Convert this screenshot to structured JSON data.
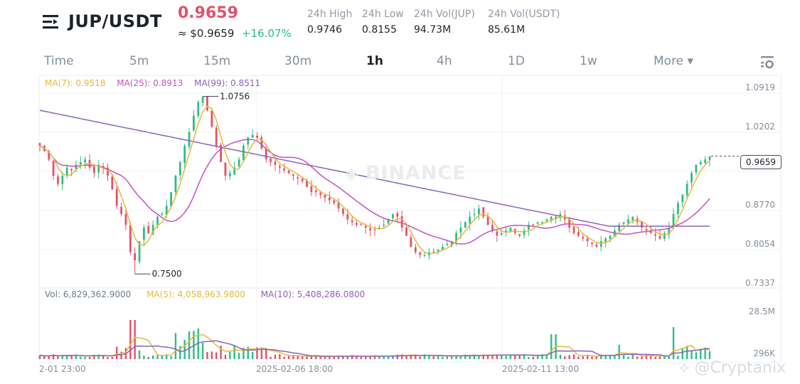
{
  "header": {
    "pair": "JUP/USDT",
    "last_price": "0.9659",
    "approx_usd": "≈ $0.9659",
    "change_pct": "+16.07%",
    "stats": [
      {
        "label": "24h High",
        "value": "0.9746"
      },
      {
        "label": "24h Low",
        "value": "0.8155"
      },
      {
        "label": "24h Vol(JUP)",
        "value": "94.73M"
      },
      {
        "label": "24h Vol(USDT)",
        "value": "85.61M"
      }
    ]
  },
  "tabs": [
    {
      "label": "Time"
    },
    {
      "label": "5m"
    },
    {
      "label": "15m"
    },
    {
      "label": "30m"
    },
    {
      "label": "1h",
      "active": true
    },
    {
      "label": "4h"
    },
    {
      "label": "1D"
    },
    {
      "label": "1w"
    },
    {
      "label": "More ▾"
    }
  ],
  "icons": {
    "menu": "menu-icon",
    "settings": "chart-settings-icon"
  },
  "colors": {
    "up": "#2ebd85",
    "down": "#e0536a",
    "ma7": "#e8b83a",
    "ma25": "#c552c0",
    "ma99": "#8a63b8",
    "vol_ma5": "#e8b83a",
    "vol_ma10": "#8a63b8",
    "grid": "#f0f1f2",
    "accent_price": "#e0536a"
  },
  "price_legend": {
    "ma7": "MA(7): 0.9518",
    "ma25": "MA(25): 0.8913",
    "ma99": "MA(99): 0.8511"
  },
  "volume_legend": {
    "vol": "Vol: 6,829,362.9000",
    "ma5": "MA(5): 4,058,963.9800",
    "ma10": "MA(10): 5,408,286.0800"
  },
  "watermarks": {
    "exchange": "BINANCE",
    "user": "@Cryptanix"
  },
  "chart_data": {
    "type": "candlestick",
    "title": "JUP/USDT 1h",
    "interval": "1h",
    "price_axis_ticks": [
      "1.0919",
      "1.0202",
      "0.8770",
      "0.8054",
      "0.7337"
    ],
    "volume_axis_ticks": [
      "28.5M",
      "296K"
    ],
    "x_tick_labels": [
      "2-01 23:00",
      "2025-02-06 18:00",
      "2025-02-11 13:00"
    ],
    "current_price_tag": "0.9659",
    "annotations": {
      "high": "1.0756",
      "low": "0.7500"
    },
    "ylim": [
      0.7337,
      1.0919
    ],
    "moving_averages": {
      "MA7": 0.9518,
      "MA25": 0.8913,
      "MA99": 0.8511
    },
    "volume_ma": {
      "MA5": 4058963.98,
      "MA10": 5408286.08,
      "last_vol": 6829362.9
    },
    "close_path": [
      0.985,
      0.975,
      0.96,
      0.93,
      0.915,
      0.93,
      0.945,
      0.94,
      0.95,
      0.955,
      0.96,
      0.945,
      0.935,
      0.95,
      0.945,
      0.93,
      0.905,
      0.875,
      0.86,
      0.84,
      0.79,
      0.775,
      0.81,
      0.835,
      0.825,
      0.84,
      0.855,
      0.86,
      0.875,
      0.9,
      0.93,
      0.955,
      0.985,
      1.01,
      1.04,
      1.065,
      1.075,
      1.05,
      1.02,
      0.985,
      0.955,
      0.93,
      0.935,
      0.945,
      0.96,
      0.985,
      1.0,
      1.005,
      1.0,
      0.98,
      0.96,
      0.955,
      0.95,
      0.945,
      0.94,
      0.935,
      0.93,
      0.925,
      0.92,
      0.91,
      0.9,
      0.9,
      0.895,
      0.89,
      0.885,
      0.88,
      0.87,
      0.86,
      0.85,
      0.845,
      0.84,
      0.84,
      0.835,
      0.83,
      0.83,
      0.835,
      0.84,
      0.85,
      0.86,
      0.855,
      0.835,
      0.82,
      0.8,
      0.79,
      0.785,
      0.785,
      0.79,
      0.79,
      0.795,
      0.8,
      0.805,
      0.81,
      0.825,
      0.835,
      0.845,
      0.855,
      0.86,
      0.87,
      0.855,
      0.84,
      0.83,
      0.82,
      0.825,
      0.83,
      0.835,
      0.825,
      0.82,
      0.83,
      0.84,
      0.84,
      0.845,
      0.845,
      0.85,
      0.855,
      0.855,
      0.86,
      0.85,
      0.835,
      0.825,
      0.82,
      0.815,
      0.81,
      0.805,
      0.8,
      0.81,
      0.815,
      0.82,
      0.83,
      0.84,
      0.845,
      0.85,
      0.855,
      0.845,
      0.835,
      0.83,
      0.825,
      0.82,
      0.815,
      0.825,
      0.835,
      0.86,
      0.88,
      0.895,
      0.915,
      0.935,
      0.95,
      0.955,
      0.96,
      0.9659
    ]
  }
}
